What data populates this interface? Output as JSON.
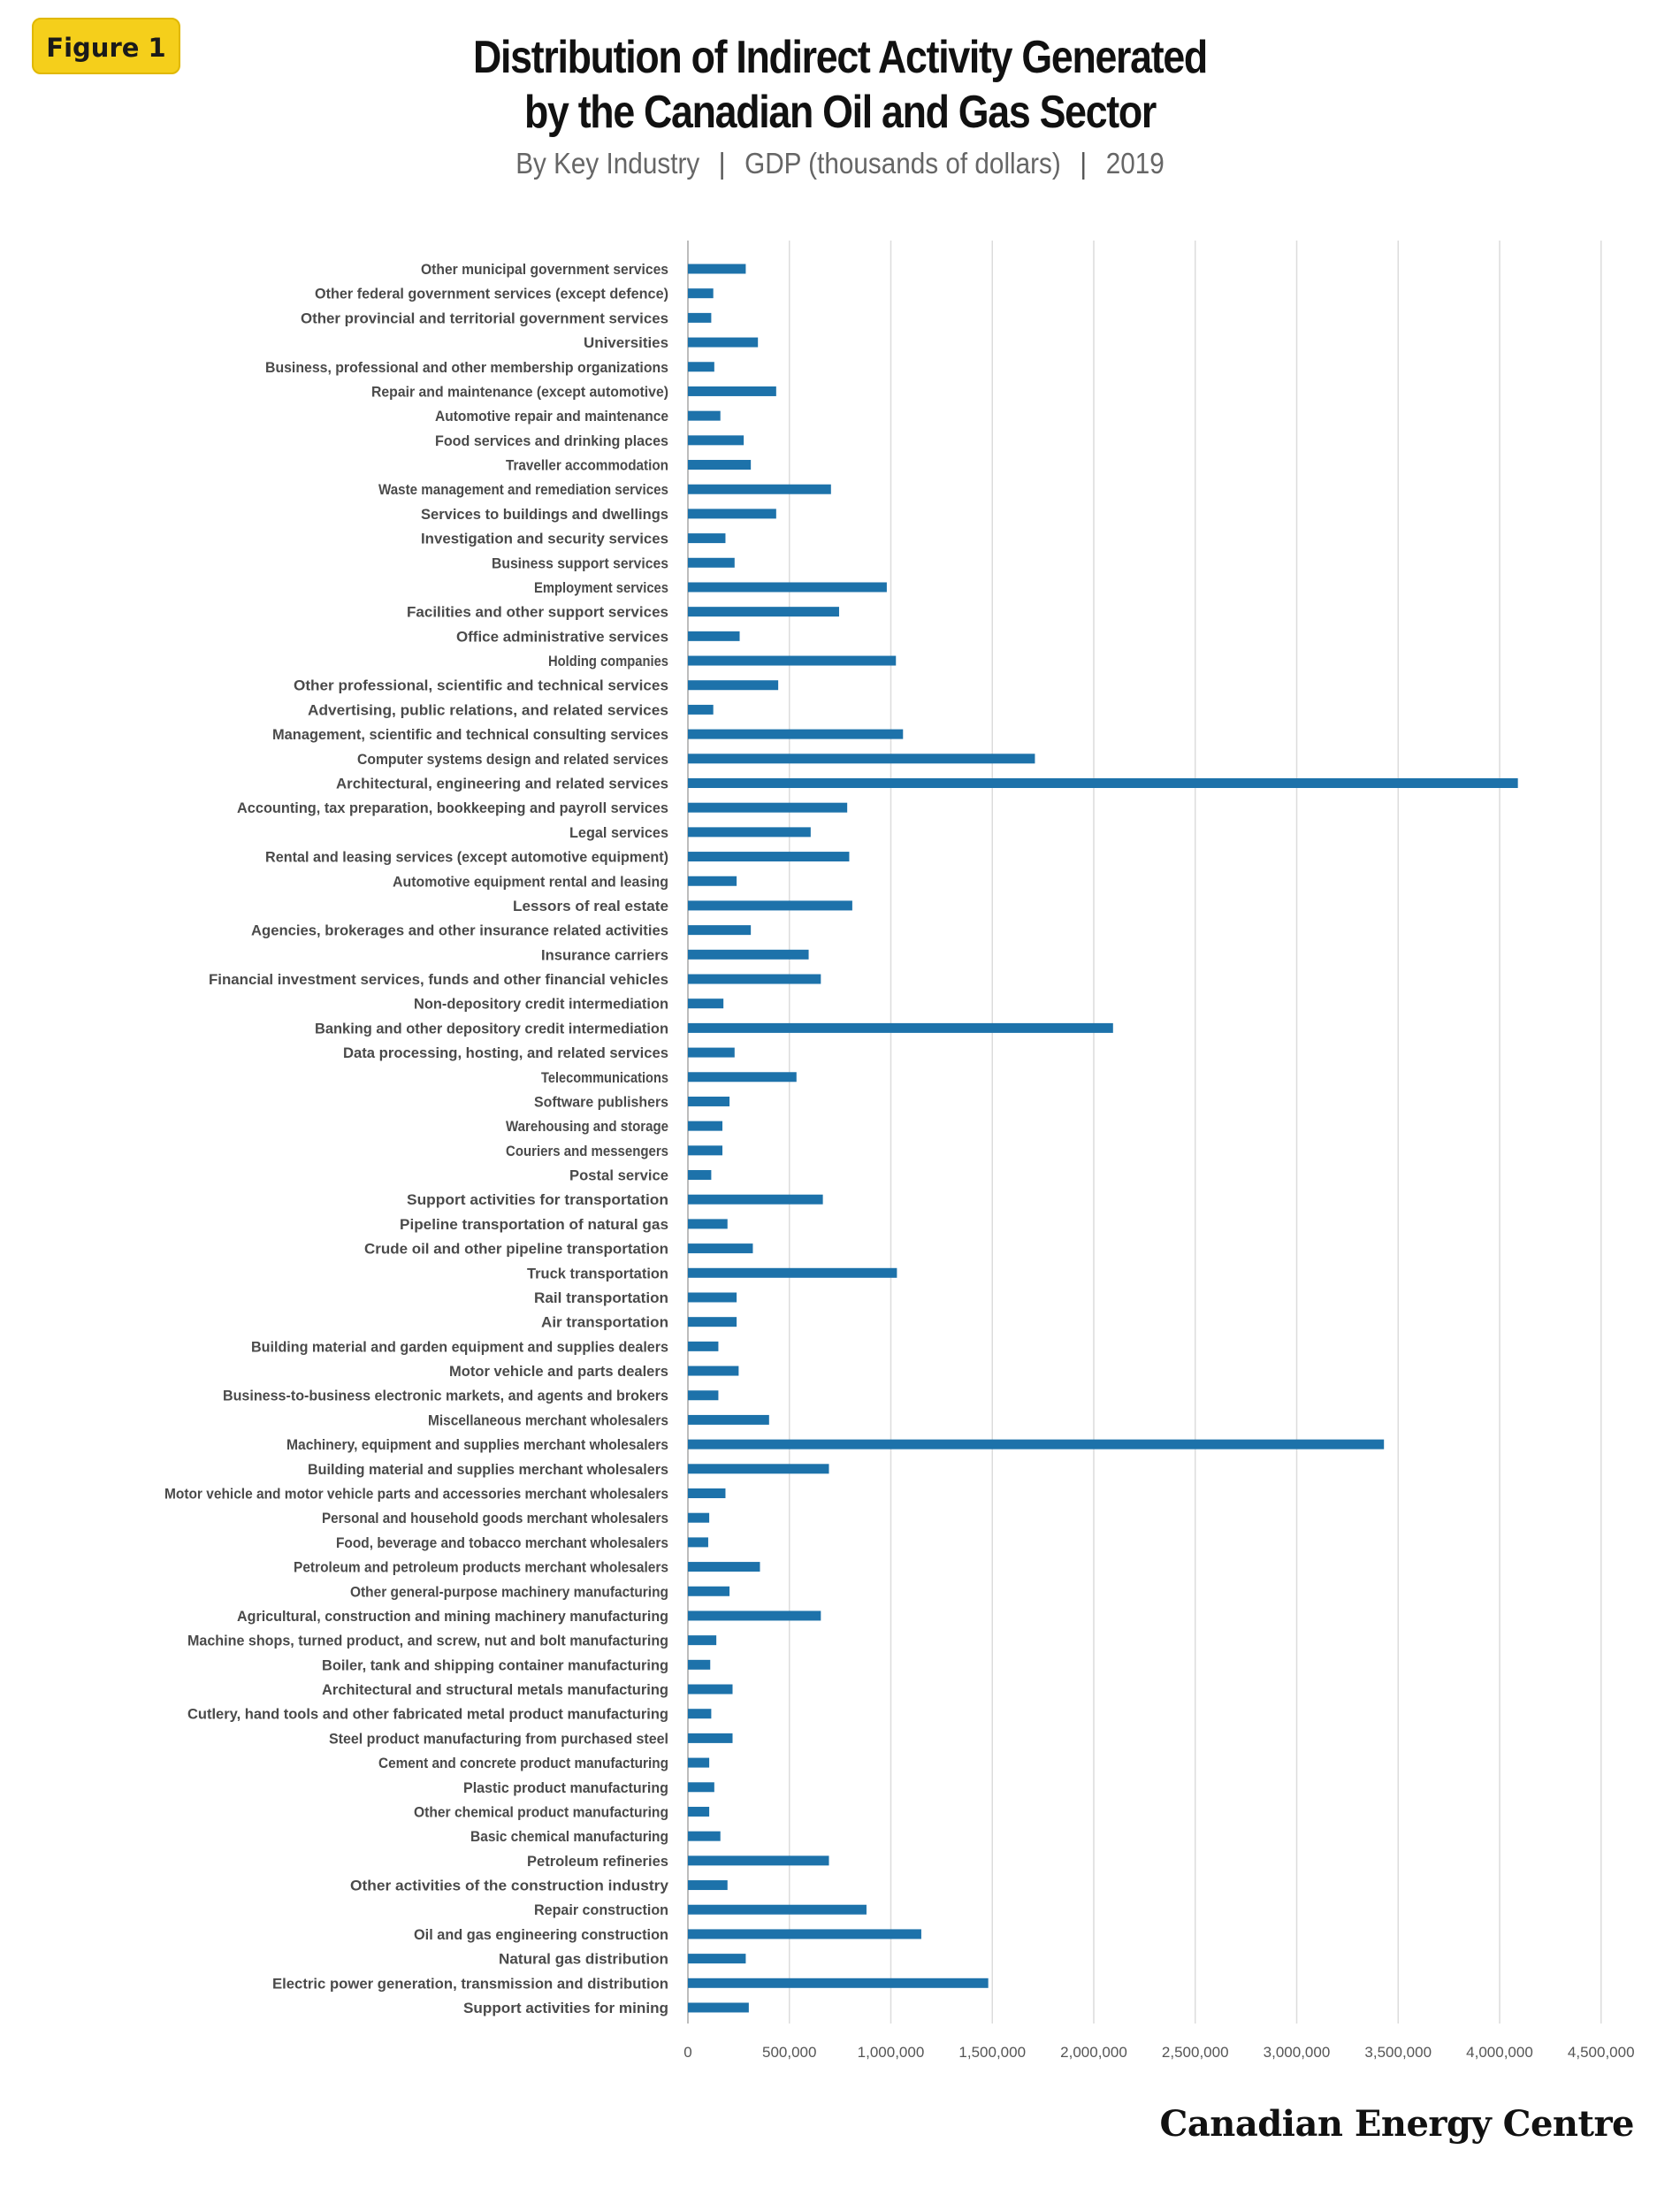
{
  "badge": "Figure 1",
  "title_line1": "Distribution of Indirect Activity Generated",
  "title_line2": "by the Canadian Oil and Gas Sector",
  "subtitle": {
    "part1": "By Key Industry",
    "part2": "GDP (thousands of dollars)",
    "part3": "2019",
    "separator": "|"
  },
  "brand": "Canadian Energy Centre",
  "colors": {
    "bar_dark": "#1d5796",
    "bar_light": "#1d72aa",
    "grid": "#dcdcdc",
    "label": "#4a4a4a",
    "badge": "#f5cf1b"
  },
  "chart_data": {
    "type": "bar",
    "orientation": "horizontal",
    "title": "Distribution of Indirect Activity Generated by the Canadian Oil and Gas Sector",
    "subtitle": "By Key Industry | GDP (thousands of dollars) | 2019",
    "xlabel": "",
    "ylabel": "",
    "xlim": [
      0,
      4500000
    ],
    "x_ticks": [
      0,
      500000,
      1000000,
      1500000,
      2000000,
      2500000,
      3000000,
      3500000,
      4000000,
      4500000
    ],
    "x_tick_labels": [
      "0",
      "500,000",
      "1,000,000",
      "1,500,000",
      "2,000,000",
      "2,500,000",
      "3,000,000",
      "3,500,000",
      "4,000,000",
      "4,500,000"
    ],
    "grid": true,
    "legend": "none",
    "categories": [
      "Other municipal government services",
      "Other federal government services (except defence)",
      "Other provincial and territorial government services",
      "Universities",
      "Business, professional and other membership organizations",
      "Repair and maintenance (except automotive)",
      "Automotive repair and maintenance",
      "Food services and drinking places",
      "Traveller accommodation",
      "Waste management and remediation services",
      "Services to buildings and dwellings",
      "Investigation and security services",
      "Business support services",
      "Employment services",
      "Facilities and other support services",
      "Office administrative services",
      "Holding companies",
      "Other professional, scientific and technical services",
      "Advertising, public relations, and related services",
      "Management, scientific and technical consulting services",
      "Computer systems design and related services",
      "Architectural, engineering and related services",
      "Accounting, tax preparation, bookkeeping and payroll services",
      "Legal services",
      "Rental and leasing services (except automotive equipment)",
      "Automotive equipment rental and leasing",
      "Lessors of real estate",
      "Agencies, brokerages and other insurance related activities",
      "Insurance carriers",
      "Financial investment services, funds and other financial vehicles",
      "Non-depository credit intermediation",
      "Banking and other depository credit intermediation",
      "Data processing, hosting, and related services",
      "Telecommunications",
      "Software publishers",
      "Warehousing and storage",
      "Couriers and messengers",
      "Postal service",
      "Support activities for transportation",
      "Pipeline transportation of natural gas",
      "Crude oil and other pipeline transportation",
      "Truck transportation",
      "Rail transportation",
      "Air transportation",
      "Building material and garden equipment and supplies dealers",
      "Motor vehicle and parts dealers",
      "Business-to-business electronic markets, and agents and brokers",
      "Miscellaneous merchant wholesalers",
      "Machinery, equipment and supplies merchant wholesalers",
      "Building material and supplies merchant wholesalers",
      "Motor vehicle and motor vehicle parts and accessories merchant wholesalers",
      "Personal and household goods merchant wholesalers",
      "Food, beverage and tobacco merchant wholesalers",
      "Petroleum and petroleum products merchant wholesalers",
      "Other general-purpose machinery manufacturing",
      "Agricultural, construction and mining machinery manufacturing",
      "Machine shops, turned product, and screw, nut and bolt manufacturing",
      "Boiler, tank and shipping container manufacturing",
      "Architectural and structural metals manufacturing",
      "Cutlery, hand tools and other fabricated metal product manufacturing",
      "Steel product manufacturing from purchased steel",
      "Cement and concrete product manufacturing",
      "Plastic product manufacturing",
      "Other chemical product manufacturing",
      "Basic chemical manufacturing",
      "Petroleum refineries",
      "Other activities of the construction industry",
      "Repair construction",
      "Oil and gas engineering construction",
      "Natural gas distribution",
      "Electric power generation, transmission and distribution",
      "Support activities for mining"
    ],
    "values": [
      285000,
      125000,
      115000,
      345000,
      130000,
      435000,
      160000,
      275000,
      310000,
      705000,
      435000,
      185000,
      230000,
      980000,
      745000,
      255000,
      1025000,
      445000,
      125000,
      1060000,
      1710000,
      4090000,
      785000,
      605000,
      795000,
      240000,
      810000,
      310000,
      595000,
      655000,
      175000,
      2095000,
      230000,
      535000,
      205000,
      170000,
      170000,
      115000,
      665000,
      195000,
      320000,
      1030000,
      240000,
      240000,
      150000,
      250000,
      150000,
      400000,
      3430000,
      695000,
      185000,
      105000,
      100000,
      355000,
      205000,
      655000,
      140000,
      110000,
      220000,
      115000,
      220000,
      105000,
      130000,
      105000,
      160000,
      695000,
      195000,
      880000,
      1150000,
      285000,
      1480000,
      300000
    ]
  }
}
